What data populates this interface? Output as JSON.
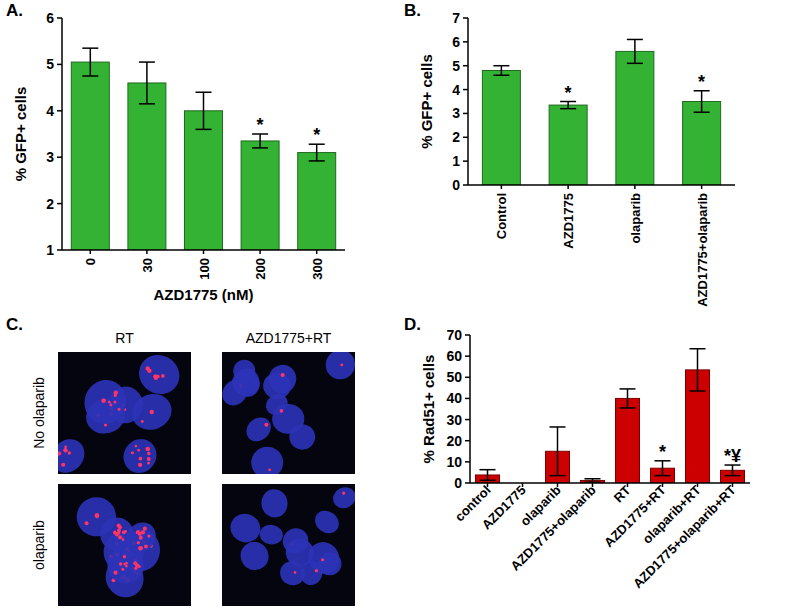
{
  "chart_data": [
    {
      "type": "bar",
      "title": "A.",
      "x_label": "AZD1775 (nM)",
      "y_label": "% GFP+ cells",
      "categories": [
        "0",
        "30",
        "100",
        "200",
        "300"
      ],
      "values": [
        5.05,
        4.6,
        4.0,
        3.35,
        3.1
      ],
      "errors": [
        0.3,
        0.45,
        0.4,
        0.15,
        0.18
      ],
      "annotations": [
        null,
        null,
        null,
        "*",
        "*"
      ],
      "color": "#33b233",
      "ylim": [
        1,
        6
      ],
      "yticks": [
        1,
        2,
        3,
        4,
        5,
        6
      ],
      "grid": false
    },
    {
      "type": "bar",
      "title": "B.",
      "y_label": "% GFP+ cells",
      "categories": [
        "Control",
        "AZD1775",
        "olaparib",
        "AZD1775+olaparib"
      ],
      "values": [
        4.8,
        3.35,
        5.6,
        3.5
      ],
      "errors": [
        0.2,
        0.15,
        0.5,
        0.45
      ],
      "annotations": [
        null,
        "*",
        null,
        "*"
      ],
      "color": "#33b233",
      "ylim": [
        0,
        7
      ],
      "yticks": [
        0,
        1,
        2,
        3,
        4,
        5,
        6,
        7
      ],
      "grid": false
    },
    {
      "type": "bar",
      "title": "D.",
      "y_label": "% Rad51+ cells",
      "categories": [
        "control",
        "AZD1775",
        "olaparib",
        "AZD1775+olaparib",
        "RT",
        "AZD1775+RT",
        "olaparib+RT",
        "AZD1775+olaparib+RT"
      ],
      "values": [
        3.8,
        0,
        15,
        1.2,
        40,
        7,
        53.5,
        6
      ],
      "errors": [
        2.5,
        0,
        11.5,
        0.8,
        4.5,
        3.5,
        10,
        2.5
      ],
      "annotations": [
        null,
        null,
        null,
        null,
        null,
        "*",
        null,
        "*¥"
      ],
      "color": "#cc0000",
      "ylim": [
        0,
        70
      ],
      "yticks": [
        0,
        10,
        20,
        30,
        40,
        50,
        60,
        70
      ],
      "grid": false
    }
  ],
  "image_panel": {
    "title": "C.",
    "columns": [
      "RT",
      "AZD1775+RT"
    ],
    "rows": [
      "No olaparib",
      "olaparib"
    ]
  }
}
